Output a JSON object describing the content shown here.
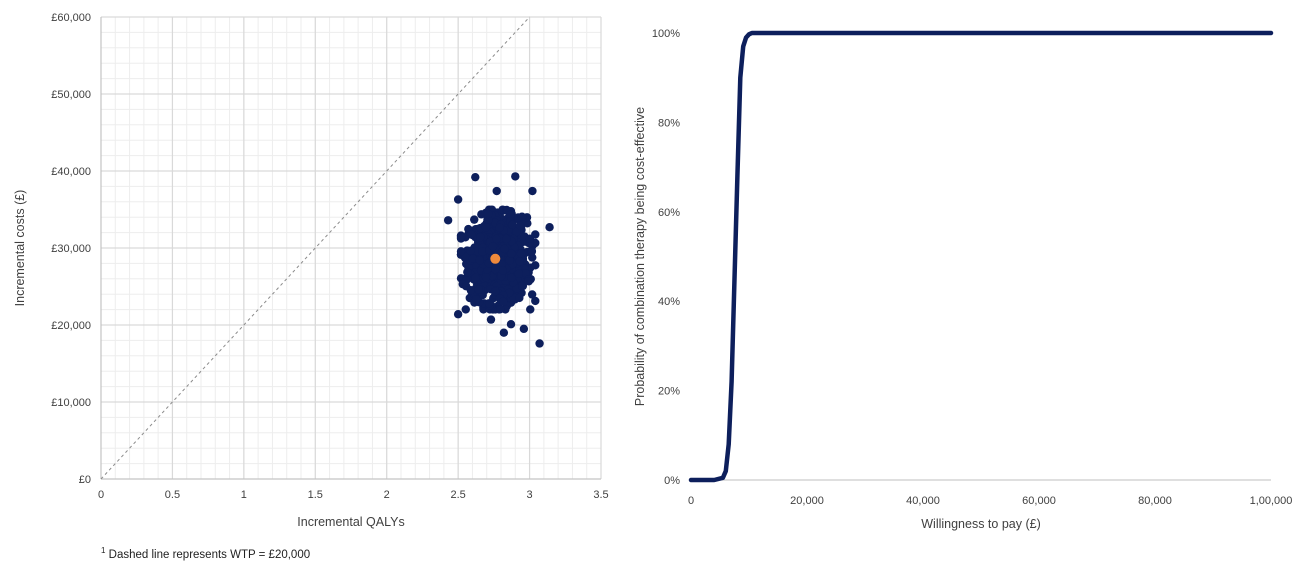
{
  "chart_data": [
    {
      "type": "scatter",
      "title": "",
      "xlabel": "Incremental QALYs",
      "ylabel": "Incremental costs (£)",
      "xlim": [
        0,
        3.5
      ],
      "ylim": [
        0,
        60000
      ],
      "x_ticks": [
        "0",
        "0.5",
        "1",
        "1.5",
        "2",
        "2.5",
        "3",
        "3.5"
      ],
      "y_ticks": [
        "£0",
        "£10,000",
        "£20,000",
        "£30,000",
        "£40,000",
        "£50,000",
        "£60,000"
      ],
      "grid": true,
      "colors": {
        "points": "#0d1f5c",
        "mean": "#f08a3c",
        "wtp_line": "#8c8c8c",
        "grid": "#d9d9d9"
      },
      "reference_line": {
        "style": "dashed",
        "x": [
          0,
          3.0
        ],
        "y": [
          0,
          60000
        ]
      },
      "mean_point": {
        "x": 2.76,
        "y": 28600
      },
      "cloud": {
        "center_x": 2.78,
        "center_y": 28500,
        "sd_x": 0.1,
        "sd_y": 2700,
        "n": 1000
      },
      "outlier_points": [
        {
          "x": 2.62,
          "y": 39200
        },
        {
          "x": 2.9,
          "y": 39300
        },
        {
          "x": 2.77,
          "y": 37400
        },
        {
          "x": 3.02,
          "y": 37400
        },
        {
          "x": 2.5,
          "y": 36300
        },
        {
          "x": 3.07,
          "y": 17600
        },
        {
          "x": 2.82,
          "y": 19000
        },
        {
          "x": 2.96,
          "y": 19500
        },
        {
          "x": 2.5,
          "y": 21400
        },
        {
          "x": 3.14,
          "y": 32700
        },
        {
          "x": 2.43,
          "y": 33600
        },
        {
          "x": 2.87,
          "y": 20100
        },
        {
          "x": 2.73,
          "y": 20700
        }
      ]
    },
    {
      "type": "line",
      "title": "",
      "xlabel": "Willingness to pay (£)",
      "ylabel": "Probability of combination therapy being cost-effective",
      "xlim": [
        0,
        100000
      ],
      "ylim": [
        0,
        1
      ],
      "x_ticks": [
        "0",
        "20,000",
        "40,000",
        "60,000",
        "80,000",
        "1,00,000"
      ],
      "y_ticks": [
        "0%",
        "20%",
        "40%",
        "60%",
        "80%",
        "100%"
      ],
      "grid": false,
      "colors": {
        "line": "#0d1f5c"
      },
      "series": [
        {
          "x": [
            0,
            4000,
            5500,
            6000,
            6500,
            7000,
            7500,
            8000,
            8500,
            9000,
            9500,
            10000,
            10500,
            11000,
            100000
          ],
          "y": [
            0,
            0,
            0.005,
            0.02,
            0.08,
            0.22,
            0.45,
            0.68,
            0.9,
            0.97,
            0.99,
            0.997,
            1,
            1,
            1
          ]
        }
      ]
    }
  ],
  "footnote": {
    "marker": "1",
    "text": " Dashed line represents WTP = £20,000"
  }
}
